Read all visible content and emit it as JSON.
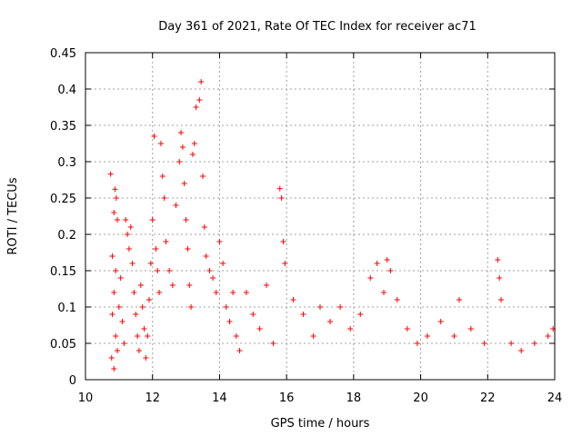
{
  "chart_data": {
    "type": "scatter",
    "title": "Day 361 of 2021, Rate Of TEC Index for receiver ac71",
    "xlabel": "GPS time / hours",
    "ylabel": "ROTI / TECUs",
    "xlim": [
      10,
      24
    ],
    "ylim": [
      0,
      0.45
    ],
    "x_ticks": [
      10,
      12,
      14,
      16,
      18,
      20,
      22,
      24
    ],
    "x_tick_labels": [
      "10",
      "12",
      "14",
      "16",
      "18",
      "20",
      "22",
      "24"
    ],
    "y_ticks": [
      0,
      0.05,
      0.1,
      0.15,
      0.2,
      0.25,
      0.3,
      0.35,
      0.4,
      0.45
    ],
    "y_tick_labels": [
      "0",
      "0.05",
      "0.1",
      "0.15",
      "0.2",
      "0.25",
      "0.3",
      "0.35",
      "0.4",
      "0.45"
    ],
    "grid": true,
    "marker": "plus",
    "color": "#ff0000",
    "series": [
      {
        "name": "ROTI",
        "points": [
          [
            10.75,
            0.283
          ],
          [
            10.85,
            0.23
          ],
          [
            10.88,
            0.262
          ],
          [
            10.92,
            0.25
          ],
          [
            10.95,
            0.22
          ],
          [
            10.8,
            0.17
          ],
          [
            10.9,
            0.15
          ],
          [
            10.85,
            0.12
          ],
          [
            10.8,
            0.09
          ],
          [
            10.9,
            0.06
          ],
          [
            10.78,
            0.03
          ],
          [
            10.85,
            0.015
          ],
          [
            10.95,
            0.04
          ],
          [
            11.0,
            0.1
          ],
          [
            11.05,
            0.14
          ],
          [
            11.1,
            0.08
          ],
          [
            11.15,
            0.05
          ],
          [
            11.2,
            0.22
          ],
          [
            11.25,
            0.2
          ],
          [
            11.3,
            0.18
          ],
          [
            11.35,
            0.21
          ],
          [
            11.4,
            0.16
          ],
          [
            11.45,
            0.12
          ],
          [
            11.5,
            0.09
          ],
          [
            11.55,
            0.06
          ],
          [
            11.6,
            0.04
          ],
          [
            11.65,
            0.13
          ],
          [
            11.7,
            0.1
          ],
          [
            11.75,
            0.07
          ],
          [
            11.8,
            0.03
          ],
          [
            11.85,
            0.06
          ],
          [
            11.9,
            0.11
          ],
          [
            11.95,
            0.16
          ],
          [
            12.0,
            0.22
          ],
          [
            12.05,
            0.335
          ],
          [
            12.1,
            0.18
          ],
          [
            12.15,
            0.15
          ],
          [
            12.2,
            0.12
          ],
          [
            12.25,
            0.325
          ],
          [
            12.3,
            0.28
          ],
          [
            12.35,
            0.25
          ],
          [
            12.4,
            0.19
          ],
          [
            12.5,
            0.15
          ],
          [
            12.6,
            0.13
          ],
          [
            12.7,
            0.24
          ],
          [
            12.8,
            0.3
          ],
          [
            12.85,
            0.34
          ],
          [
            12.9,
            0.32
          ],
          [
            12.95,
            0.27
          ],
          [
            13.0,
            0.22
          ],
          [
            13.05,
            0.18
          ],
          [
            13.1,
            0.13
          ],
          [
            13.15,
            0.1
          ],
          [
            13.2,
            0.31
          ],
          [
            13.25,
            0.325
          ],
          [
            13.3,
            0.375
          ],
          [
            13.4,
            0.385
          ],
          [
            13.45,
            0.41
          ],
          [
            13.5,
            0.28
          ],
          [
            13.55,
            0.21
          ],
          [
            13.6,
            0.17
          ],
          [
            13.7,
            0.15
          ],
          [
            13.8,
            0.14
          ],
          [
            13.9,
            0.12
          ],
          [
            14.0,
            0.19
          ],
          [
            14.1,
            0.16
          ],
          [
            14.2,
            0.1
          ],
          [
            14.3,
            0.08
          ],
          [
            14.4,
            0.12
          ],
          [
            14.5,
            0.06
          ],
          [
            14.6,
            0.04
          ],
          [
            14.8,
            0.12
          ],
          [
            15.0,
            0.09
          ],
          [
            15.2,
            0.07
          ],
          [
            15.4,
            0.13
          ],
          [
            15.6,
            0.05
          ],
          [
            15.8,
            0.263
          ],
          [
            15.85,
            0.25
          ],
          [
            15.9,
            0.19
          ],
          [
            15.95,
            0.16
          ],
          [
            16.2,
            0.11
          ],
          [
            16.5,
            0.09
          ],
          [
            16.8,
            0.06
          ],
          [
            17.0,
            0.1
          ],
          [
            17.3,
            0.08
          ],
          [
            17.6,
            0.1
          ],
          [
            17.9,
            0.07
          ],
          [
            18.2,
            0.09
          ],
          [
            18.5,
            0.14
          ],
          [
            18.7,
            0.16
          ],
          [
            18.9,
            0.12
          ],
          [
            19.0,
            0.165
          ],
          [
            19.1,
            0.15
          ],
          [
            19.3,
            0.11
          ],
          [
            19.6,
            0.07
          ],
          [
            19.9,
            0.05
          ],
          [
            20.2,
            0.06
          ],
          [
            20.6,
            0.08
          ],
          [
            21.0,
            0.06
          ],
          [
            21.15,
            0.11
          ],
          [
            21.5,
            0.07
          ],
          [
            21.9,
            0.05
          ],
          [
            22.3,
            0.165
          ],
          [
            22.35,
            0.14
          ],
          [
            22.4,
            0.11
          ],
          [
            22.7,
            0.05
          ],
          [
            23.0,
            0.04
          ],
          [
            23.4,
            0.05
          ],
          [
            23.8,
            0.06
          ],
          [
            23.95,
            0.07
          ]
        ]
      }
    ]
  }
}
